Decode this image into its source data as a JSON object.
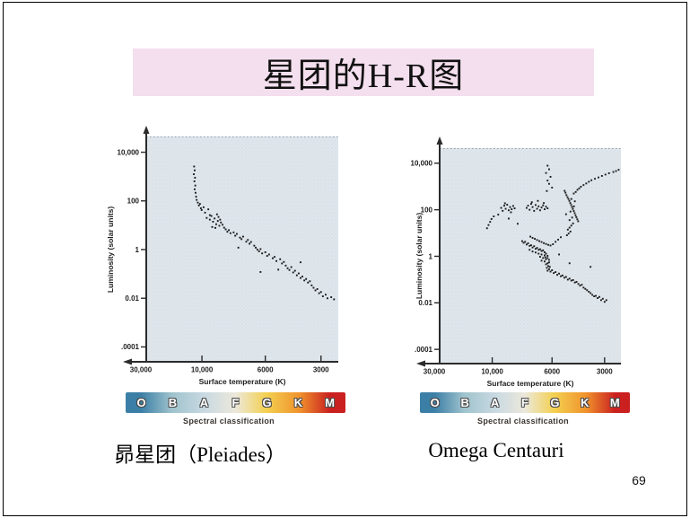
{
  "slide": {
    "title": "星团的H-R图",
    "page_number": "69"
  },
  "captions": {
    "left": "昴星团（Pleiades）",
    "right": "Omega Centauri"
  },
  "spectral": {
    "classes": [
      "O",
      "B",
      "A",
      "F",
      "G",
      "K",
      "M"
    ],
    "label": "Spectral classification"
  },
  "colors": {
    "title_bar_bg": "#f4dfee",
    "plot_bg_color": "#dfe6ec",
    "point_color": "#1c1c1c",
    "axis_color": "#2b2b2b",
    "spectral_gradient": [
      "#3c7fa6",
      "#9fc3cd",
      "#c9d9e2",
      "#ece8db",
      "#f3d050",
      "#f0932c",
      "#ca2020"
    ]
  },
  "chart_data": [
    {
      "id": "pleiades",
      "type": "scatter",
      "name": "Pleiades (昴星团)",
      "xlabel": "Surface temperature (K)",
      "ylabel": "Luminosity (solar units)",
      "x_scale": "log-reversed",
      "y_scale": "log",
      "xlim": [
        30000,
        2300
      ],
      "ylim": [
        0.0001,
        10000
      ],
      "x_ticks": [
        {
          "label": "30,000",
          "value": 30000
        },
        {
          "label": "10,000",
          "value": 10000
        },
        {
          "label": "6000",
          "value": 6000
        },
        {
          "label": "3000",
          "value": 3000
        }
      ],
      "y_ticks": [
        {
          "label": "10,000",
          "value": 10000
        },
        {
          "label": "100",
          "value": 100
        },
        {
          "label": "1",
          "value": 1
        },
        {
          "label": "0.01",
          "value": 0.01
        },
        {
          "label": ".0001",
          "value": 0.0001
        }
      ],
      "points": [
        [
          12800,
          2600
        ],
        [
          12600,
          1800
        ],
        [
          12900,
          1250
        ],
        [
          12500,
          900
        ],
        [
          12700,
          640
        ],
        [
          12400,
          430
        ],
        [
          12600,
          300
        ],
        [
          12300,
          215
        ],
        [
          12100,
          150
        ],
        [
          11900,
          110
        ],
        [
          11500,
          85
        ],
        [
          11100,
          65
        ],
        [
          10700,
          75
        ],
        [
          10400,
          50
        ],
        [
          10100,
          42
        ],
        [
          9900,
          55
        ],
        [
          9800,
          33
        ],
        [
          9600,
          45
        ],
        [
          9500,
          26
        ],
        [
          9700,
          20
        ],
        [
          9500,
          17
        ],
        [
          9400,
          24
        ],
        [
          9300,
          14
        ],
        [
          9200,
          19
        ],
        [
          9100,
          11
        ],
        [
          9000,
          15
        ],
        [
          8900,
          9.5
        ],
        [
          8800,
          13
        ],
        [
          9350,
          8.5
        ],
        [
          9150,
          7.8
        ],
        [
          8700,
          10.5
        ],
        [
          8600,
          8
        ],
        [
          9050,
          28
        ],
        [
          8950,
          22
        ],
        [
          8850,
          17
        ],
        [
          8500,
          6.8
        ],
        [
          8400,
          5.4
        ],
        [
          8300,
          6.3
        ],
        [
          8200,
          4.7
        ],
        [
          8000,
          5.1
        ],
        [
          7900,
          3.7
        ],
        [
          7800,
          4.4
        ],
        [
          7600,
          3.1
        ],
        [
          7500,
          2.7
        ],
        [
          7400,
          3.4
        ],
        [
          7200,
          2.1
        ],
        [
          7100,
          2.5
        ],
        [
          7000,
          1.75
        ],
        [
          6900,
          2.05
        ],
        [
          6700,
          1.45
        ],
        [
          6600,
          1.2
        ],
        [
          6500,
          1.0
        ],
        [
          6400,
          0.85
        ],
        [
          6300,
          1.05
        ],
        [
          6200,
          0.7
        ],
        [
          6000,
          0.78
        ],
        [
          5900,
          0.55
        ],
        [
          5800,
          0.63
        ],
        [
          5600,
          0.44
        ],
        [
          5500,
          0.5
        ],
        [
          5400,
          0.34
        ],
        [
          5200,
          0.4
        ],
        [
          5100,
          0.27
        ],
        [
          5000,
          0.31
        ],
        [
          4900,
          0.22
        ],
        [
          4800,
          0.17
        ],
        [
          4700,
          0.145
        ],
        [
          4600,
          0.19
        ],
        [
          4500,
          0.115
        ],
        [
          4400,
          0.135
        ],
        [
          4300,
          0.088
        ],
        [
          4200,
          0.105
        ],
        [
          4100,
          0.068
        ],
        [
          4000,
          0.078
        ],
        [
          3900,
          0.054
        ],
        [
          3800,
          0.062
        ],
        [
          3700,
          0.044
        ],
        [
          3600,
          0.05
        ],
        [
          3500,
          0.034
        ],
        [
          3400,
          0.027
        ],
        [
          3300,
          0.021
        ],
        [
          3200,
          0.024
        ],
        [
          3100,
          0.016
        ],
        [
          3000,
          0.018
        ],
        [
          2900,
          0.012
        ],
        [
          2750,
          0.014
        ],
        [
          2650,
          0.01
        ],
        [
          2450,
          0.011
        ],
        [
          2300,
          0.009
        ],
        [
          7700,
          1.2
        ],
        [
          6300,
          0.12
        ],
        [
          5300,
          0.15
        ],
        [
          4100,
          0.3
        ]
      ]
    },
    {
      "id": "omega",
      "type": "scatter",
      "name": "Omega Centauri",
      "xlabel": "Surface temperature (K)",
      "ylabel": "Luminosity (solar units)",
      "x_scale": "log-reversed",
      "y_scale": "log",
      "xlim": [
        30000,
        2200
      ],
      "ylim": [
        0.0001,
        10000
      ],
      "x_ticks": [
        {
          "label": "30,000",
          "value": 30000
        },
        {
          "label": "10,000",
          "value": 10000
        },
        {
          "label": "6000",
          "value": 6000
        },
        {
          "label": "3000",
          "value": 3000
        }
      ],
      "y_ticks": [
        {
          "label": "10,000",
          "value": 10000
        },
        {
          "label": "100",
          "value": 100
        },
        {
          "label": "1",
          "value": 1
        },
        {
          "label": "0.01",
          "value": 0.01
        },
        {
          "label": ".0001",
          "value": 0.0001
        }
      ],
      "points": [
        [
          6300,
          7800
        ],
        [
          6200,
          5500
        ],
        [
          6400,
          3800
        ],
        [
          6100,
          2600
        ],
        [
          6300,
          1800
        ],
        [
          6200,
          1300
        ],
        [
          6000,
          900
        ],
        [
          6350,
          640
        ],
        [
          4760,
          500
        ],
        [
          4650,
          580
        ],
        [
          4550,
          720
        ],
        [
          4450,
          830
        ],
        [
          4350,
          980
        ],
        [
          4200,
          1150
        ],
        [
          4050,
          1350
        ],
        [
          3900,
          1600
        ],
        [
          3750,
          1850
        ],
        [
          3550,
          2150
        ],
        [
          3350,
          2450
        ],
        [
          3150,
          2850
        ],
        [
          2950,
          3250
        ],
        [
          2750,
          3700
        ],
        [
          2500,
          4200
        ],
        [
          2350,
          4600
        ],
        [
          2200,
          5200
        ],
        [
          5280,
          650
        ],
        [
          5230,
          540
        ],
        [
          5180,
          430
        ],
        [
          5120,
          350
        ],
        [
          5060,
          290
        ],
        [
          5010,
          240
        ],
        [
          4960,
          195
        ],
        [
          4910,
          160
        ],
        [
          4860,
          130
        ],
        [
          4810,
          108
        ],
        [
          4760,
          88
        ],
        [
          4710,
          72
        ],
        [
          4660,
          58
        ],
        [
          4610,
          48
        ],
        [
          4560,
          39
        ],
        [
          4510,
          32
        ],
        [
          4800,
          26
        ],
        [
          4900,
          21
        ],
        [
          5000,
          17
        ],
        [
          5100,
          14
        ],
        [
          4950,
          11.5
        ],
        [
          5050,
          9.5
        ],
        [
          5150,
          8
        ],
        [
          4850,
          46
        ],
        [
          4750,
          140
        ],
        [
          4700,
          230
        ],
        [
          4950,
          84
        ],
        [
          5200,
          64
        ],
        [
          5000,
          36
        ],
        [
          4900,
          290
        ],
        [
          7700,
          120
        ],
        [
          7600,
          150
        ],
        [
          7500,
          100
        ],
        [
          7400,
          180
        ],
        [
          7300,
          130
        ],
        [
          7200,
          90
        ],
        [
          7100,
          160
        ],
        [
          7000,
          110
        ],
        [
          6900,
          140
        ],
        [
          6800,
          95
        ],
        [
          6700,
          125
        ],
        [
          6600,
          155
        ],
        [
          6500,
          105
        ],
        [
          6400,
          135
        ],
        [
          6300,
          115
        ],
        [
          7350,
          210
        ],
        [
          6950,
          240
        ],
        [
          6550,
          195
        ],
        [
          9400,
          120
        ],
        [
          9300,
          90
        ],
        [
          9200,
          150
        ],
        [
          9100,
          110
        ],
        [
          9000,
          165
        ],
        [
          8900,
          95
        ],
        [
          8800,
          130
        ],
        [
          8700,
          105
        ],
        [
          8600,
          145
        ],
        [
          8500,
          115
        ],
        [
          9150,
          190
        ],
        [
          8750,
          78
        ],
        [
          12000,
          16
        ],
        [
          11400,
          22
        ],
        [
          10800,
          30
        ],
        [
          10300,
          40
        ],
        [
          9900,
          52
        ],
        [
          9600,
          62
        ],
        [
          7450,
          7
        ],
        [
          7300,
          6.2
        ],
        [
          7150,
          5.6
        ],
        [
          7000,
          5
        ],
        [
          6850,
          4.5
        ],
        [
          6700,
          4.1
        ],
        [
          6550,
          3.7
        ],
        [
          6400,
          3.4
        ],
        [
          6250,
          3.1
        ],
        [
          6100,
          2.9
        ],
        [
          5950,
          3.3
        ],
        [
          5800,
          4.2
        ],
        [
          5650,
          5.2
        ],
        [
          5500,
          6.6
        ],
        [
          8000,
          4.5
        ],
        [
          7900,
          3.8
        ],
        [
          7800,
          4.2
        ],
        [
          7700,
          3.2
        ],
        [
          7600,
          3.6
        ],
        [
          7500,
          2.8
        ],
        [
          7400,
          3
        ],
        [
          7300,
          2.4
        ],
        [
          7200,
          2.7
        ],
        [
          7100,
          2.1
        ],
        [
          7000,
          2.3
        ],
        [
          6900,
          1.9
        ],
        [
          6800,
          2
        ],
        [
          6700,
          1.7
        ],
        [
          6600,
          1.8
        ],
        [
          6500,
          1.5
        ],
        [
          7500,
          1.9
        ],
        [
          7300,
          1.6
        ],
        [
          7100,
          1.45
        ],
        [
          6900,
          1.3
        ],
        [
          6700,
          1.2
        ],
        [
          6500,
          1.1
        ],
        [
          6400,
          1.3
        ],
        [
          6300,
          1.05
        ],
        [
          6800,
          0.95
        ],
        [
          6600,
          0.85
        ],
        [
          6400,
          0.75
        ],
        [
          6300,
          0.85
        ],
        [
          6200,
          0.7
        ],
        [
          6500,
          0.6
        ],
        [
          6700,
          0.65
        ],
        [
          6300,
          0.5
        ],
        [
          6200,
          0.55
        ],
        [
          6400,
          0.45
        ],
        [
          6250,
          0.38
        ],
        [
          6350,
          0.32
        ],
        [
          6200,
          0.28
        ],
        [
          6300,
          0.24
        ],
        [
          6150,
          0.35
        ],
        [
          6450,
          0.9
        ],
        [
          6100,
          0.22
        ],
        [
          6000,
          0.25
        ],
        [
          5900,
          0.19
        ],
        [
          5800,
          0.21
        ],
        [
          5700,
          0.16
        ],
        [
          5600,
          0.18
        ],
        [
          5500,
          0.14
        ],
        [
          5400,
          0.15
        ],
        [
          5300,
          0.12
        ],
        [
          5200,
          0.13
        ],
        [
          5100,
          0.1
        ],
        [
          5000,
          0.11
        ],
        [
          4900,
          0.09
        ],
        [
          4800,
          0.095
        ],
        [
          4700,
          0.075
        ],
        [
          4600,
          0.08
        ],
        [
          4500,
          0.065
        ],
        [
          4400,
          0.055
        ],
        [
          4300,
          0.06
        ],
        [
          4200,
          0.045
        ],
        [
          4100,
          0.04
        ],
        [
          4000,
          0.035
        ],
        [
          3900,
          0.03
        ],
        [
          3800,
          0.026
        ],
        [
          3700,
          0.022
        ],
        [
          3600,
          0.019
        ],
        [
          3500,
          0.02
        ],
        [
          3400,
          0.016
        ],
        [
          3300,
          0.018
        ],
        [
          3200,
          0.013
        ],
        [
          3100,
          0.015
        ],
        [
          3000,
          0.011
        ],
        [
          2900,
          0.013
        ],
        [
          8300,
          25
        ],
        [
          8900,
          42
        ],
        [
          5600,
          1.2
        ],
        [
          5000,
          0.5
        ],
        [
          3800,
          0.35
        ]
      ]
    }
  ]
}
